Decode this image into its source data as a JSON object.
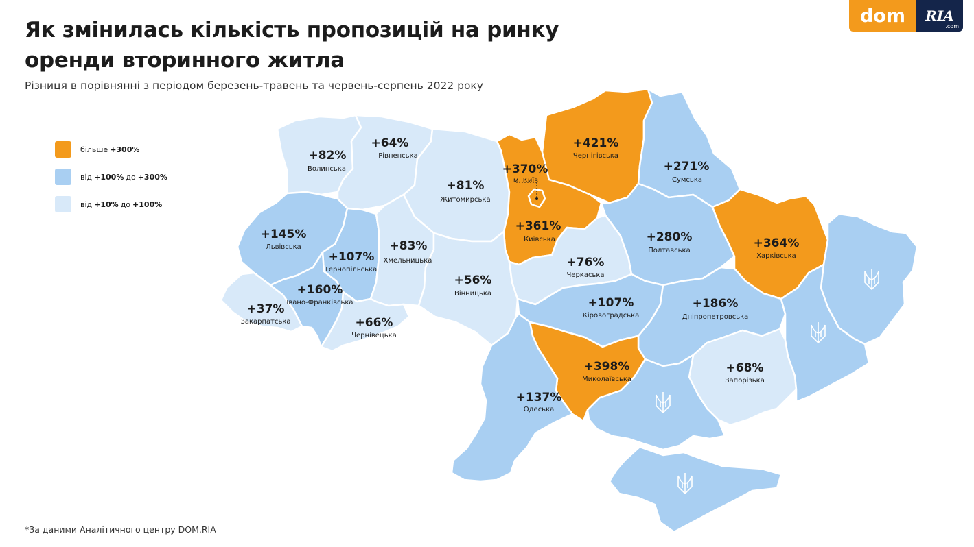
{
  "header": {
    "title_line1": "Як змінилась кількість пропозицій на ринку",
    "title_line2": "оренди вторинного житла",
    "subtitle": "Різниця в порівнянні з  періодом березень-травень та червень-серпень 2022 року"
  },
  "logo": {
    "dom": "dom",
    "ria": "RIA",
    "com": ".com"
  },
  "colors": {
    "high": "#f39a1c",
    "mid": "#a9cff2",
    "low": "#d8e9f9",
    "occupied": "#a9cff2",
    "border": "#ffffff"
  },
  "legend": [
    {
      "category": "high",
      "prefix": "більше",
      "value1": "+300%",
      "middle": "",
      "value2": ""
    },
    {
      "category": "mid",
      "prefix": "від",
      "value1": "+100%",
      "middle": "до",
      "value2": "+300%"
    },
    {
      "category": "low",
      "prefix": "від",
      "value1": "+10%",
      "middle": "до",
      "value2": "+100%"
    }
  ],
  "regions": [
    {
      "id": "volyn",
      "name": "Волинська",
      "change": "+82%",
      "category": "low"
    },
    {
      "id": "rivne",
      "name": "Рівненська",
      "change": "+64%",
      "category": "low"
    },
    {
      "id": "zhytomyr",
      "name": "Житомирська",
      "change": "+81%",
      "category": "low"
    },
    {
      "id": "kyiv-oblast",
      "name": "Київська",
      "change": "+361%",
      "category": "high"
    },
    {
      "id": "kyiv-city",
      "name": "м. Київ",
      "change": "+370%",
      "category": "high"
    },
    {
      "id": "chernihiv",
      "name": "Чернігівська",
      "change": "+421%",
      "category": "high"
    },
    {
      "id": "sumy",
      "name": "Сумська",
      "change": "+271%",
      "category": "mid"
    },
    {
      "id": "lviv",
      "name": "Львівська",
      "change": "+145%",
      "category": "mid"
    },
    {
      "id": "ternopil",
      "name": "Тернопільська",
      "change": "+107%",
      "category": "mid"
    },
    {
      "id": "khmelnytskyi",
      "name": "Хмельницька",
      "change": "+83%",
      "category": "low"
    },
    {
      "id": "zakarpattia",
      "name": "Закарпатська",
      "change": "+37%",
      "category": "low"
    },
    {
      "id": "ivano-frankivsk",
      "name": "Івано-Франківська",
      "change": "+160%",
      "category": "mid"
    },
    {
      "id": "chernivtsi",
      "name": "Чернівецька",
      "change": "+66%",
      "category": "low"
    },
    {
      "id": "vinnytsia",
      "name": "Вінницька",
      "change": "+56%",
      "category": "low"
    },
    {
      "id": "cherkasy",
      "name": "Черкаська",
      "change": "+76%",
      "category": "low"
    },
    {
      "id": "poltava",
      "name": "Полтавська",
      "change": "+280%",
      "category": "mid"
    },
    {
      "id": "kharkiv",
      "name": "Харківська",
      "change": "+364%",
      "category": "high"
    },
    {
      "id": "kirovohrad",
      "name": "Кіровоградська",
      "change": "+107%",
      "category": "mid"
    },
    {
      "id": "dnipro",
      "name": "Дніпропетровська",
      "change": "+186%",
      "category": "mid"
    },
    {
      "id": "mykolaiv",
      "name": "Миколаївська",
      "change": "+398%",
      "category": "high"
    },
    {
      "id": "odesa",
      "name": "Одеська",
      "change": "+137%",
      "category": "mid"
    },
    {
      "id": "zaporizhzhia",
      "name": "Запорізька",
      "change": "+68%",
      "category": "low"
    },
    {
      "id": "luhansk",
      "name": "",
      "change": "",
      "category": "occupied"
    },
    {
      "id": "donetsk",
      "name": "",
      "change": "",
      "category": "occupied"
    },
    {
      "id": "kherson",
      "name": "",
      "change": "",
      "category": "occupied"
    },
    {
      "id": "crimea",
      "name": "",
      "change": "",
      "category": "occupied"
    }
  ],
  "footnote": "*За даними Аналітичного центру DOM.RIA"
}
